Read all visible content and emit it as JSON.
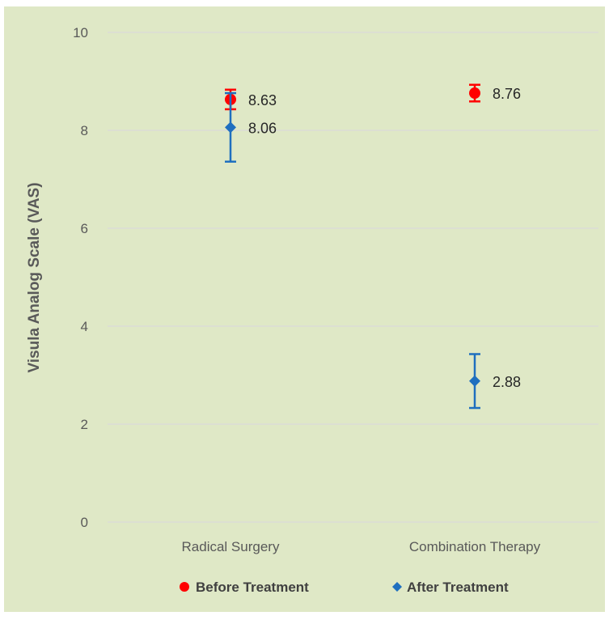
{
  "colors": {
    "background": "#dfe8c6",
    "gridline": "#d9d9d9",
    "before": "#ff0000",
    "after": "#1f6fbf"
  },
  "chart_data": {
    "type": "scatter",
    "title": "",
    "xlabel": "",
    "ylabel": "Visula Analog Scale (VAS)",
    "ylim": [
      0,
      10
    ],
    "yticks": [
      "0",
      "2",
      "4",
      "6",
      "8",
      "10"
    ],
    "categories": [
      "Radical Surgery",
      "Combination Therapy"
    ],
    "grid": true,
    "legend_position": "bottom",
    "series": [
      {
        "name": "Before Treatment",
        "marker": "circle",
        "values": [
          8.63,
          8.76
        ],
        "labels": [
          "8.63",
          "8.76"
        ],
        "error": [
          0.2,
          0.17
        ]
      },
      {
        "name": "After Treatment",
        "marker": "diamond",
        "values": [
          8.06,
          2.88
        ],
        "labels": [
          "8.06",
          "2.88"
        ],
        "error": [
          0.7,
          0.55
        ]
      }
    ]
  }
}
